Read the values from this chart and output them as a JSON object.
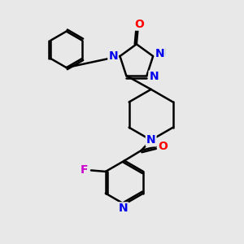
{
  "background_color": "#e8e8e8",
  "bond_color": "#000000",
  "atom_colors": {
    "N": "#0000ee",
    "O": "#ff0000",
    "F": "#cc00cc",
    "H": "#008888",
    "C": "#000000"
  },
  "bond_width": 1.8,
  "figsize": [
    3.0,
    3.0
  ],
  "dpi": 100
}
